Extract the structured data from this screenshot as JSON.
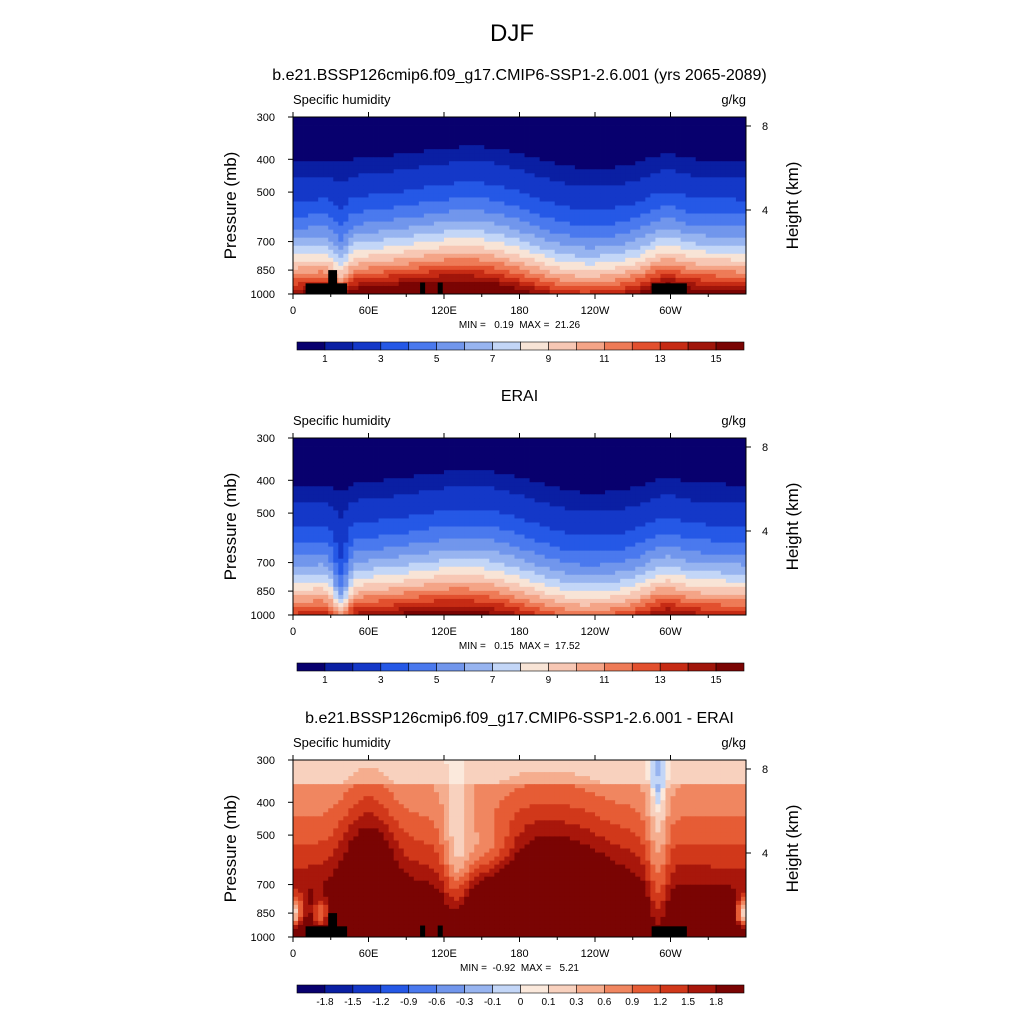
{
  "title": "DJF",
  "colors": {
    "humidity_palette": [
      "#08006e",
      "#0a1fa3",
      "#1438c8",
      "#2558e6",
      "#4a79ee",
      "#7196ec",
      "#97b4f0",
      "#c3d6f7",
      "#f8e4d6",
      "#f7c7b4",
      "#f4a487",
      "#ee7b57",
      "#e2502e",
      "#c62b14",
      "#a0150a",
      "#7a0403"
    ],
    "difference_palette": [
      "#08006e",
      "#0a1fa3",
      "#1438c8",
      "#2558e6",
      "#4a79ee",
      "#7196ec",
      "#97b4f0",
      "#c3d6f7",
      "#fbe9dc",
      "#f8d1be",
      "#f5ad8e",
      "#f08660",
      "#e65c35",
      "#d1381a",
      "#a8170b",
      "#7a0403"
    ]
  },
  "chart_data": [
    {
      "type": "heatmap",
      "panel_title": "b.e21.BSSP126cmip6.f09_g17.CMIP6-SSP1-2.6.001 (yrs 2065-2089)",
      "left_label": "Specific humidity",
      "right_label": "g/kg",
      "ylabel": "Pressure (mb)",
      "y2label": "Height (km)",
      "xticks": [
        "0",
        "60E",
        "120E",
        "180",
        "120W",
        "60W"
      ],
      "xtick_values": [
        0,
        60,
        120,
        180,
        240,
        300
      ],
      "xlim": [
        0,
        360
      ],
      "yticks": [
        "300",
        "400",
        "500",
        "700",
        "850",
        "1000"
      ],
      "ytick_values": [
        300,
        400,
        500,
        700,
        850,
        1000
      ],
      "ylim": [
        1000,
        300
      ],
      "y_scale": "log",
      "y2ticks": [
        "8",
        "4"
      ],
      "y2tick_values": [
        8,
        4
      ],
      "min_max_text": "MIN =   0.19  MAX =  21.26",
      "min": 0.19,
      "max": 21.26,
      "colorbar_labels": [
        "1",
        "3",
        "5",
        "7",
        "9",
        "11",
        "13",
        "15"
      ],
      "levels": [
        0.5,
        1,
        2,
        3,
        4,
        5,
        6,
        7,
        8,
        9,
        10,
        11,
        12,
        13,
        14,
        15
      ]
    },
    {
      "type": "heatmap",
      "panel_title": "ERAI",
      "left_label": "Specific humidity",
      "right_label": "g/kg",
      "ylabel": "Pressure (mb)",
      "y2label": "Height (km)",
      "xticks": [
        "0",
        "60E",
        "120E",
        "180",
        "120W",
        "60W"
      ],
      "xtick_values": [
        0,
        60,
        120,
        180,
        240,
        300
      ],
      "xlim": [
        0,
        360
      ],
      "yticks": [
        "300",
        "400",
        "500",
        "700",
        "850",
        "1000"
      ],
      "ytick_values": [
        300,
        400,
        500,
        700,
        850,
        1000
      ],
      "ylim": [
        1000,
        300
      ],
      "y_scale": "log",
      "y2ticks": [
        "8",
        "4"
      ],
      "y2tick_values": [
        8,
        4
      ],
      "min_max_text": "MIN =   0.15  MAX =  17.52",
      "min": 0.15,
      "max": 17.52,
      "colorbar_labels": [
        "1",
        "3",
        "5",
        "7",
        "9",
        "11",
        "13",
        "15"
      ],
      "levels": [
        0.5,
        1,
        2,
        3,
        4,
        5,
        6,
        7,
        8,
        9,
        10,
        11,
        12,
        13,
        14,
        15
      ]
    },
    {
      "type": "heatmap",
      "panel_title": "b.e21.BSSP126cmip6.f09_g17.CMIP6-SSP1-2.6.001 - ERAI",
      "left_label": "Specific humidity",
      "right_label": "g/kg",
      "ylabel": "Pressure (mb)",
      "y2label": "Height (km)",
      "xticks": [
        "0",
        "60E",
        "120E",
        "180",
        "120W",
        "60W"
      ],
      "xtick_values": [
        0,
        60,
        120,
        180,
        240,
        300
      ],
      "xlim": [
        0,
        360
      ],
      "yticks": [
        "300",
        "400",
        "500",
        "700",
        "850",
        "1000"
      ],
      "ytick_values": [
        300,
        400,
        500,
        700,
        850,
        1000
      ],
      "ylim": [
        1000,
        300
      ],
      "y_scale": "log",
      "y2ticks": [
        "8",
        "4"
      ],
      "y2tick_values": [
        8,
        4
      ],
      "min_max_text": "MIN =  -0.92  MAX =   5.21",
      "min": -0.92,
      "max": 5.21,
      "colorbar_labels": [
        "-1.8",
        "-1.5",
        "-1.2",
        "-0.9",
        "-0.6",
        "-0.3",
        "-0.1",
        "0",
        "0.1",
        "0.3",
        "0.6",
        "0.9",
        "1.2",
        "1.5",
        "1.8"
      ],
      "levels": [
        -1.8,
        -1.5,
        -1.2,
        -0.9,
        -0.6,
        -0.3,
        -0.1,
        0,
        0.1,
        0.3,
        0.6,
        0.9,
        1.2,
        1.5,
        1.8
      ]
    }
  ]
}
